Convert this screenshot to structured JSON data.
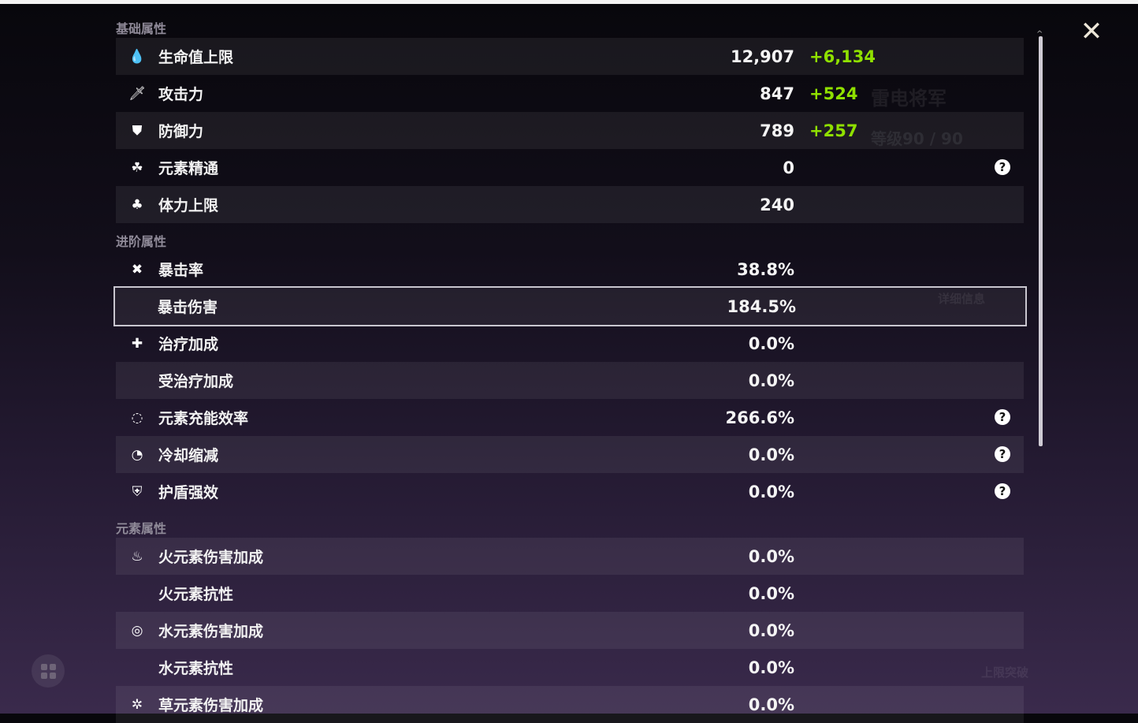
{
  "sections": {
    "basic": "基础属性",
    "advanced": "进阶属性",
    "elemental": "元素属性"
  },
  "basic_stats": [
    {
      "icon": "hp-drop-icon",
      "label": "生命值上限",
      "value": "12,907",
      "bonus": "+6,134"
    },
    {
      "icon": "sword-icon",
      "label": "攻击力",
      "value": "847",
      "bonus": "+524"
    },
    {
      "icon": "shield-icon",
      "label": "防御力",
      "value": "789",
      "bonus": "+257"
    },
    {
      "icon": "elemental-mastery-icon",
      "label": "元素精通",
      "value": "0",
      "help": true
    },
    {
      "icon": "stamina-icon",
      "label": "体力上限",
      "value": "240"
    }
  ],
  "advanced_stats": [
    {
      "icon": "crit-rate-icon",
      "label": "暴击率",
      "value": "38.8%"
    },
    {
      "icon": "",
      "label": "暴击伤害",
      "value": "184.5%",
      "selected": true
    },
    {
      "icon": "healing-cross-icon",
      "label": "治疗加成",
      "value": "0.0%"
    },
    {
      "icon": "",
      "label": "受治疗加成",
      "value": "0.0%"
    },
    {
      "icon": "energy-recharge-icon",
      "label": "元素充能效率",
      "value": "266.6%",
      "help": true
    },
    {
      "icon": "cooldown-icon",
      "label": "冷却缩减",
      "value": "0.0%",
      "help": true
    },
    {
      "icon": "shield-strength-icon",
      "label": "护盾强效",
      "value": "0.0%",
      "help": true
    }
  ],
  "elemental_stats": [
    {
      "icon": "pyro-icon",
      "label": "火元素伤害加成",
      "value": "0.0%"
    },
    {
      "icon": "",
      "label": "火元素抗性",
      "value": "0.0%"
    },
    {
      "icon": "hydro-icon",
      "label": "水元素伤害加成",
      "value": "0.0%"
    },
    {
      "icon": "",
      "label": "水元素抗性",
      "value": "0.0%"
    },
    {
      "icon": "dendro-icon",
      "label": "草元素伤害加成",
      "value": "0.0%"
    }
  ],
  "background": {
    "character_name": "雷电将军",
    "level": "等级90 / 90",
    "details_button": "详细信息",
    "ascend_button": "上限突破"
  },
  "help_glyph": "?",
  "colors": {
    "bonus": "#8fe000",
    "accent_bg": "#241a32"
  }
}
